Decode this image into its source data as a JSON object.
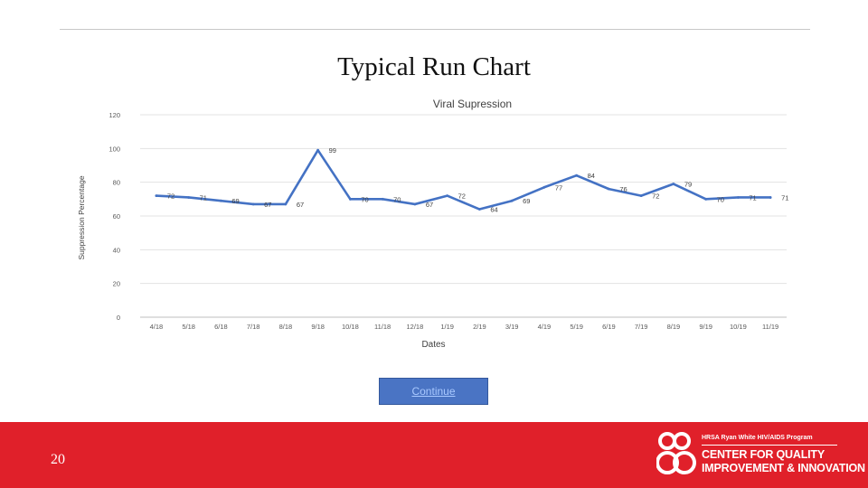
{
  "slide": {
    "title": "Typical Run Chart",
    "continue_label": "Continue",
    "page_number": "20",
    "logo": {
      "program": "HRSA Ryan White HIV/AIDS Program",
      "line1": "CENTER FOR QUALITY",
      "line2": "IMPROVEMENT & INNOVATION"
    }
  },
  "colors": {
    "series": "#4472c4",
    "footer": "#e0202a",
    "button": "#4a74c4"
  },
  "chart_data": {
    "type": "line",
    "title": "Viral Supression",
    "xlabel": "Dates",
    "ylabel": "Suppression Percentage",
    "ylim": [
      0,
      120
    ],
    "yticks": [
      0,
      20,
      40,
      60,
      80,
      100,
      120
    ],
    "grid": true,
    "categories": [
      "4/18",
      "5/18",
      "6/18",
      "7/18",
      "8/18",
      "9/18",
      "10/18",
      "11/18",
      "12/18",
      "1/19",
      "2/19",
      "3/19",
      "4/19",
      "5/19",
      "6/19",
      "7/19",
      "8/19",
      "9/19",
      "10/19",
      "11/19"
    ],
    "series": [
      {
        "values": [
          72,
          71,
          69,
          67,
          67,
          99,
          70,
          70,
          67,
          72,
          64,
          69,
          77,
          84,
          76,
          72,
          79,
          70,
          71,
          71
        ]
      }
    ],
    "data_labels": [
      "72",
      "71",
      "69",
      "67",
      "67",
      "99",
      "70",
      "70",
      "67",
      "72",
      "64",
      "69",
      "77",
      "84",
      "76",
      "72",
      "79",
      "70",
      "71",
      "71"
    ]
  }
}
